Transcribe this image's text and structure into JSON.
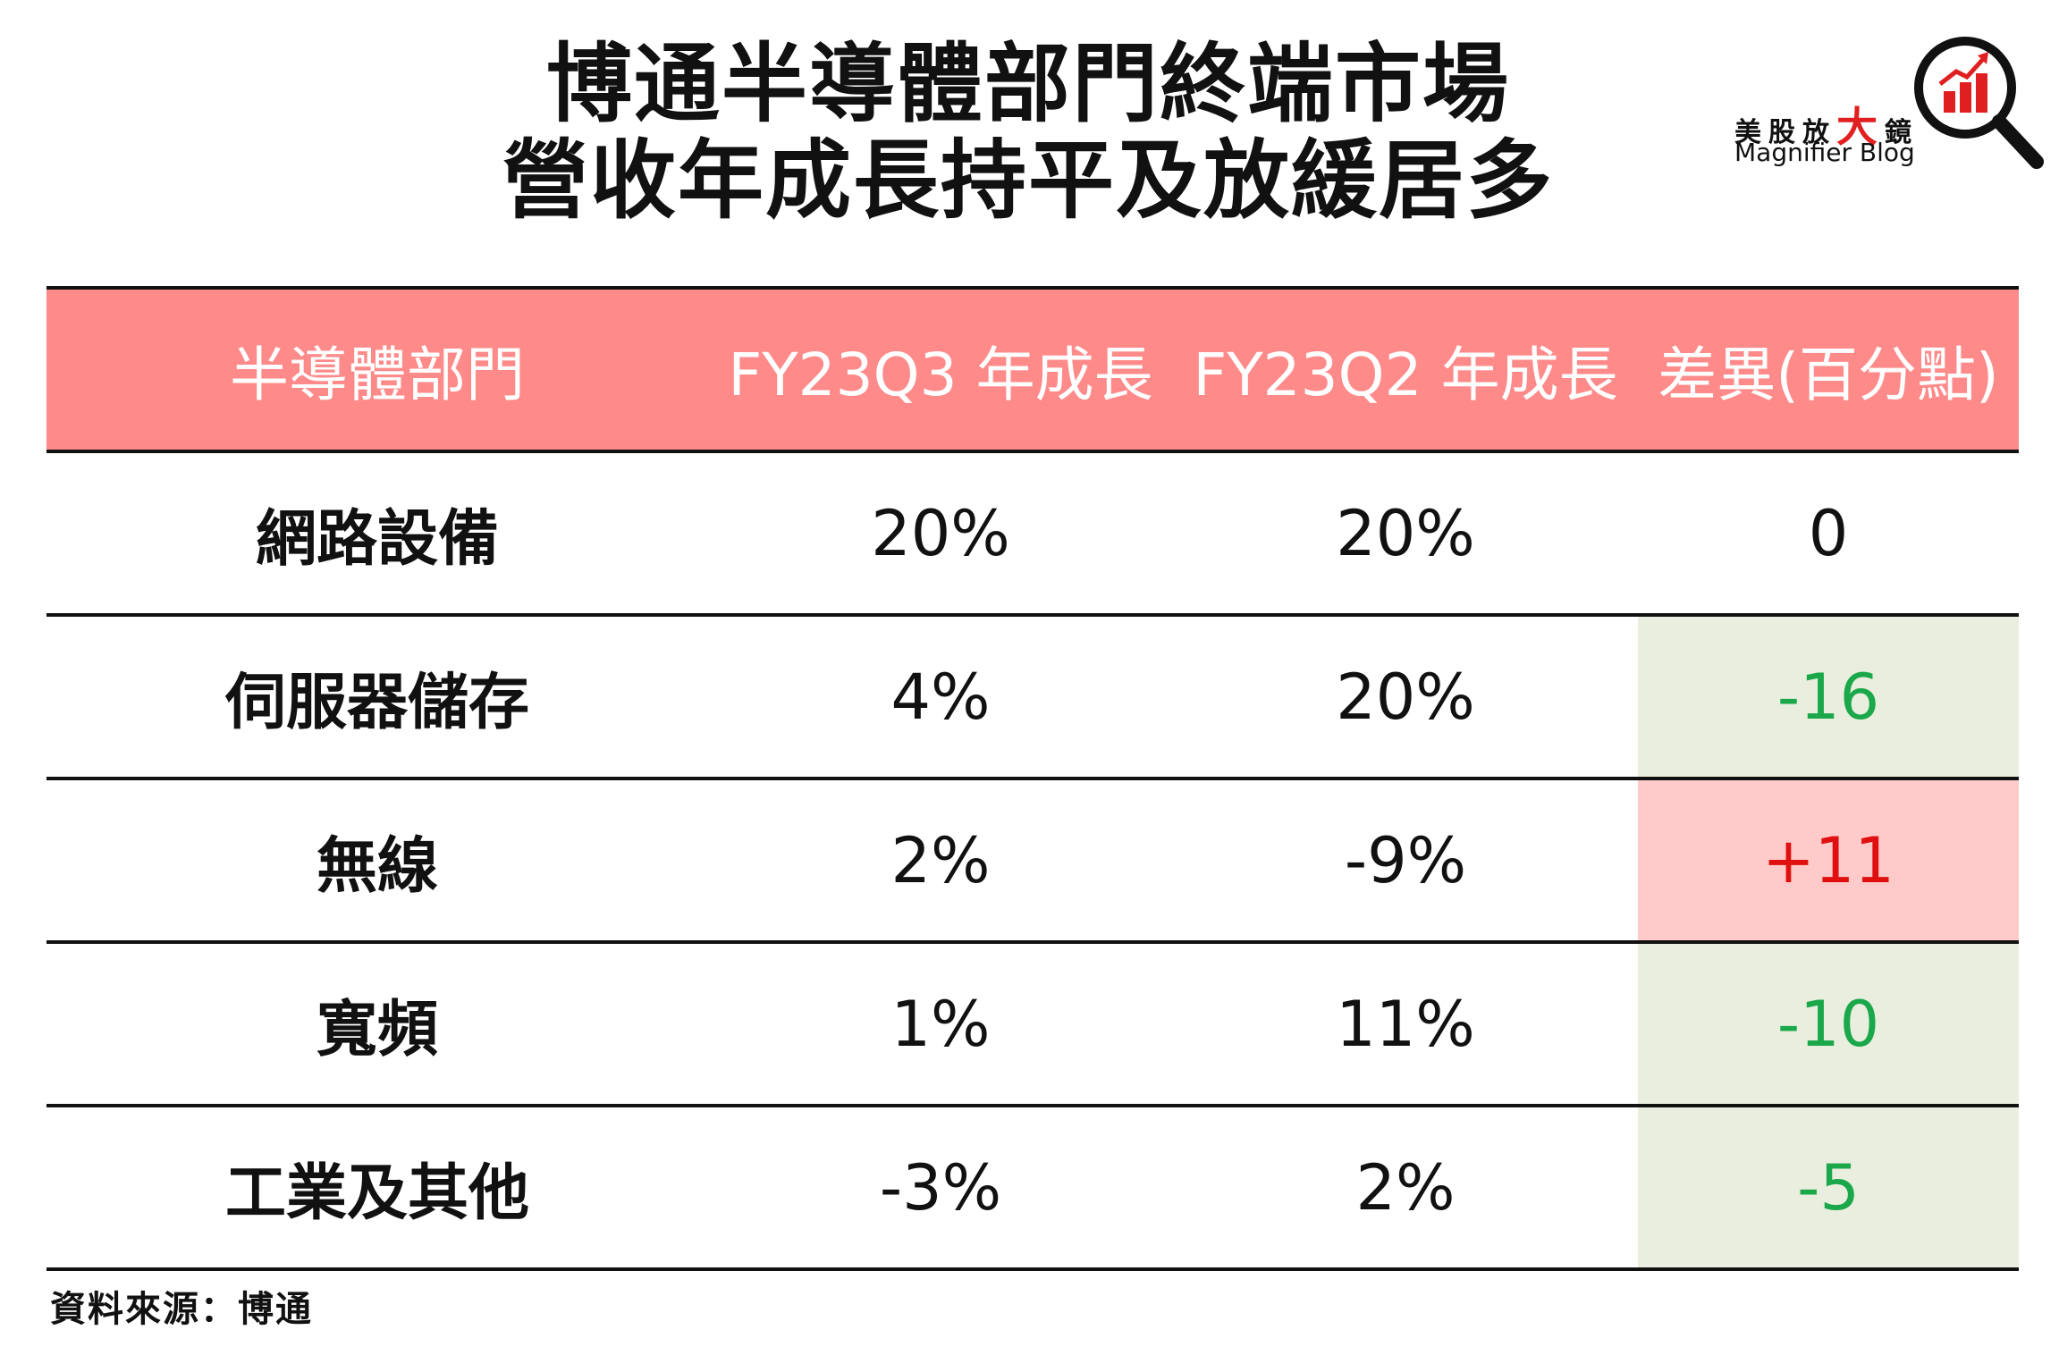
{
  "title": {
    "line1": "博通半導體部門終端市場",
    "line2": "營收年成長持平及放緩居多"
  },
  "logo": {
    "cn_part1": "美股放",
    "cn_big": "大",
    "cn_part2": "鏡",
    "en": "Magnifier Blog",
    "icon": "magnifier-bar-chart-icon",
    "colors": {
      "accent": "#e02020",
      "ring": "#111111"
    }
  },
  "chart_data": {
    "type": "table",
    "columns": [
      "半導體部門",
      "FY23Q3 年成長",
      "FY23Q2 年成長",
      "差異(百分點)"
    ],
    "rows": [
      {
        "segment": "網路設備",
        "fy23q3": "20%",
        "fy23q2": "20%",
        "diff": "0",
        "status": "neutral"
      },
      {
        "segment": "伺服器儲存",
        "fy23q3": "4%",
        "fy23q2": "20%",
        "diff": "-16",
        "status": "down"
      },
      {
        "segment": "無線",
        "fy23q3": "2%",
        "fy23q2": "-9%",
        "diff": "+11",
        "status": "up"
      },
      {
        "segment": "寬頻",
        "fy23q3": "1%",
        "fy23q2": "11%",
        "diff": "-10",
        "status": "down"
      },
      {
        "segment": "工業及其他",
        "fy23q3": "-3%",
        "fy23q2": "2%",
        "diff": "-5",
        "status": "down"
      }
    ],
    "colors": {
      "header_bg": "#ff8a8a",
      "down_bg": "#e9eedf",
      "down_text": "#1aa84a",
      "up_bg": "#ffcaca",
      "up_text": "#e01010"
    }
  },
  "source": "資料來源：博通"
}
